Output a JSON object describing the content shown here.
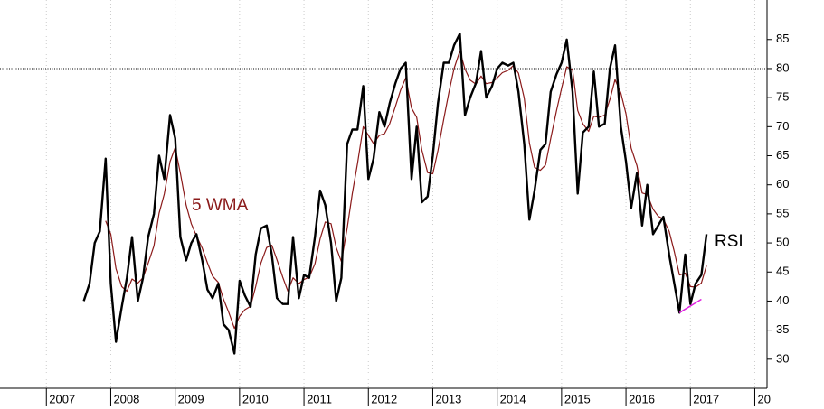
{
  "chart_data": {
    "type": "line",
    "x": [
      2007.58,
      2007.67,
      2007.75,
      2007.83,
      2007.92,
      2008.0,
      2008.08,
      2008.17,
      2008.25,
      2008.33,
      2008.42,
      2008.5,
      2008.58,
      2008.67,
      2008.75,
      2008.83,
      2008.92,
      2009.0,
      2009.08,
      2009.17,
      2009.25,
      2009.33,
      2009.42,
      2009.5,
      2009.58,
      2009.67,
      2009.75,
      2009.83,
      2009.92,
      2010.0,
      2010.08,
      2010.17,
      2010.25,
      2010.33,
      2010.42,
      2010.5,
      2010.58,
      2010.67,
      2010.75,
      2010.83,
      2010.92,
      2011.0,
      2011.08,
      2011.17,
      2011.25,
      2011.33,
      2011.42,
      2011.5,
      2011.58,
      2011.67,
      2011.75,
      2011.83,
      2011.92,
      2012.0,
      2012.08,
      2012.17,
      2012.25,
      2012.33,
      2012.42,
      2012.5,
      2012.58,
      2012.67,
      2012.75,
      2012.83,
      2012.92,
      2013.0,
      2013.08,
      2013.17,
      2013.25,
      2013.33,
      2013.42,
      2013.5,
      2013.58,
      2013.67,
      2013.75,
      2013.83,
      2013.92,
      2014.0,
      2014.08,
      2014.17,
      2014.25,
      2014.33,
      2014.42,
      2014.5,
      2014.58,
      2014.67,
      2014.75,
      2014.83,
      2014.92,
      2015.0,
      2015.08,
      2015.17,
      2015.25,
      2015.33,
      2015.42,
      2015.5,
      2015.58,
      2015.67,
      2015.75,
      2015.83,
      2015.92,
      2016.0,
      2016.08,
      2016.17,
      2016.25,
      2016.33,
      2016.42,
      2016.5,
      2016.58,
      2016.67,
      2016.75,
      2016.83,
      2016.92,
      2017.0,
      2017.08,
      2017.17,
      2017.25
    ],
    "series": [
      {
        "name": "RSI",
        "color": "#000000",
        "width": 2.4,
        "values": [
          40,
          43,
          50,
          52,
          64.5,
          43,
          33,
          39,
          44,
          51,
          40,
          44,
          51,
          55,
          65,
          61,
          72,
          68,
          51,
          47,
          50,
          51.5,
          47,
          42,
          40.5,
          43,
          36,
          35,
          31,
          43.5,
          41,
          39,
          48,
          52.5,
          53,
          48,
          40.5,
          39.5,
          39.5,
          51,
          40.5,
          44.5,
          44,
          51,
          59,
          56.5,
          50,
          40,
          44,
          67,
          69.5,
          69.5,
          77,
          61,
          64.5,
          72.5,
          70,
          74,
          77.5,
          80,
          81,
          61,
          70,
          57,
          58,
          65,
          74,
          81,
          81,
          84,
          86,
          72,
          75,
          77.5,
          83,
          75,
          77,
          80,
          81,
          80.5,
          81,
          76,
          67,
          54,
          59,
          66,
          67,
          76,
          79,
          81,
          85,
          76,
          58.5,
          69,
          70,
          79.5,
          70,
          70.5,
          80,
          84,
          70,
          64,
          56,
          62,
          53,
          60,
          51.5,
          53,
          54.5,
          48,
          43,
          38,
          48,
          39.5,
          43,
          44.5,
          51.5
        ]
      },
      {
        "name": "5 WMA",
        "color": "#8b1a1a",
        "width": 1.2,
        "values": [
          null,
          null,
          null,
          null,
          53.8,
          51.5,
          45.6,
          42.5,
          41.7,
          43.8,
          43.1,
          44,
          46.5,
          49.5,
          55.1,
          58.4,
          64,
          66.4,
          62,
          56.5,
          53.3,
          51.2,
          49.1,
          46.6,
          44.3,
          43.2,
          40.3,
          38.1,
          35.3,
          37.4,
          38.5,
          39.1,
          42.5,
          46.5,
          49.2,
          49.6,
          47.1,
          44.1,
          41.7,
          44,
          43,
          43.7,
          44.1,
          46.4,
          50.7,
          53.6,
          53.3,
          49.2,
          46.8,
          52.5,
          58.5,
          63.6,
          70,
          68.5,
          67.1,
          68.5,
          68.8,
          70.5,
          73.5,
          76.3,
          78.4,
          73.2,
          71.6,
          66,
          62.1,
          61.9,
          65.9,
          71.3,
          75.9,
          80,
          83,
          79.9,
          78,
          77.3,
          78.7,
          77.4,
          77.6,
          78.4,
          79.3,
          79.7,
          80.5,
          79.2,
          74.9,
          67.2,
          63,
          62.5,
          63.4,
          67.9,
          72.7,
          76.6,
          80.3,
          79.8,
          72.8,
          70.5,
          69.2,
          71.8,
          71.6,
          72,
          74.7,
          78.1,
          75.8,
          72.2,
          66.3,
          63.3,
          58.6,
          58.3,
          55.8,
          54.6,
          54.1,
          52,
          48.5,
          44.5,
          44.8,
          42.5,
          42.4,
          43.1,
          46.1
        ]
      }
    ],
    "trendline": {
      "x": [
        2016.83,
        2017.17
      ],
      "values": [
        38,
        40.3
      ],
      "color": "#e020e0"
    },
    "refline": 80,
    "xlim": [
      2006.28,
      2018.19
    ],
    "ylim": [
      25,
      91.8
    ],
    "xticks": [
      2007,
      2008,
      2009,
      2010,
      2011,
      2012,
      2013,
      2014,
      2015,
      2016,
      2017,
      {
        "value": 2018,
        "label": "20"
      }
    ],
    "yticks": [
      30,
      35,
      40,
      45,
      50,
      55,
      60,
      65,
      70,
      75,
      80,
      85
    ],
    "grid": true
  }
}
